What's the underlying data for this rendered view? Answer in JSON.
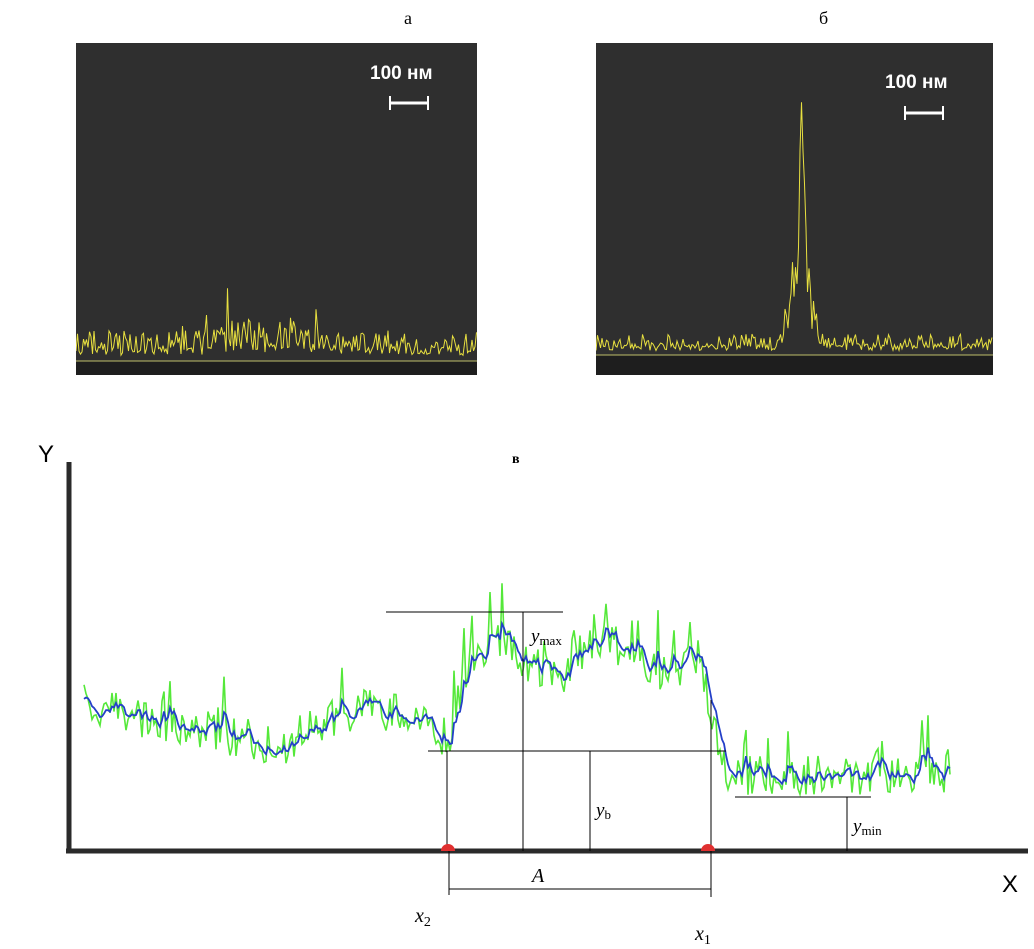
{
  "panels": {
    "a": {
      "label": "а",
      "scale_label": "100 нм"
    },
    "b": {
      "label": "б",
      "scale_label": "100 нм"
    },
    "c": {
      "label": "в"
    }
  },
  "diagram": {
    "y_axis_label": "Y",
    "x_axis_label": "X",
    "y_max": {
      "base": "y",
      "sub": "max"
    },
    "y_b": {
      "base": "y",
      "sub": "b"
    },
    "y_min": {
      "base": "y",
      "sub": "min"
    },
    "width": {
      "label": "A"
    },
    "x2": {
      "base": "x",
      "sub": "2"
    },
    "x1": {
      "base": "x",
      "sub": "1"
    }
  },
  "colors": {
    "scope_background": "#2f2f2f",
    "scope_signal": "#e8e040",
    "raw_signal": "#55e83a",
    "smoothed_signal": "#2440c8",
    "edge_marker": "#e03030"
  }
}
